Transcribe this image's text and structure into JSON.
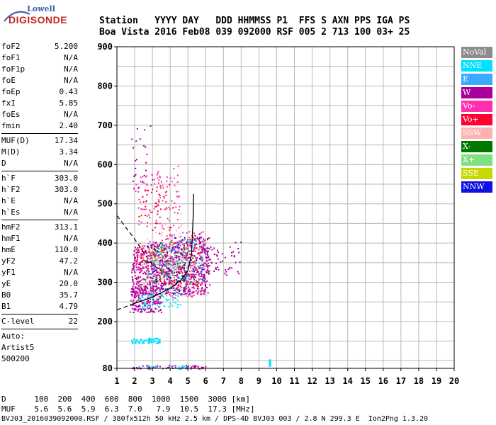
{
  "logo": {
    "line1": "Lowell",
    "line2": "DIGISONDE"
  },
  "header": {
    "row1": "Station   YYYY DAY   DDD HHMMSS P1  FFS S AXN PPS IGA PS",
    "row2": "Boa Vista 2016 Feb08 039 092000 RSF 005 2 713 100 03+ 25"
  },
  "params": {
    "group1": [
      {
        "k": "foF2",
        "v": "5.200"
      },
      {
        "k": "foF1",
        "v": "N/A"
      },
      {
        "k": "foF1p",
        "v": "N/A"
      },
      {
        "k": "foE",
        "v": "N/A"
      },
      {
        "k": "foEp",
        "v": "0.43"
      },
      {
        "k": "fxI",
        "v": "5.85"
      },
      {
        "k": "foEs",
        "v": "N/A"
      },
      {
        "k": "fmin",
        "v": "2.40"
      }
    ],
    "group2": [
      {
        "k": "MUF(D)",
        "v": "17.34"
      },
      {
        "k": "M(D)",
        "v": "3.34"
      },
      {
        "k": "D",
        "v": "N/A"
      }
    ],
    "group3": [
      {
        "k": "h`F",
        "v": "303.0"
      },
      {
        "k": "h`F2",
        "v": "303.0"
      },
      {
        "k": "h`E",
        "v": "N/A"
      },
      {
        "k": "h`Es",
        "v": "N/A"
      }
    ],
    "group4": [
      {
        "k": "hmF2",
        "v": "313.1"
      },
      {
        "k": "hmF1",
        "v": "N/A"
      },
      {
        "k": "hmE",
        "v": "110.0"
      },
      {
        "k": "yF2",
        "v": "47.2"
      },
      {
        "k": "yF1",
        "v": "N/A"
      },
      {
        "k": "yE",
        "v": "20.0"
      },
      {
        "k": "B0",
        "v": "35.7"
      },
      {
        "k": "B1",
        "v": "4.79"
      }
    ],
    "group5": [
      {
        "k": "C-level",
        "v": "22"
      }
    ],
    "auto": [
      "Auto:",
      "Artist5",
      "500200"
    ]
  },
  "legend": [
    {
      "label": "NoVal",
      "color": "#8c8c8c"
    },
    {
      "label": "NNE",
      "color": "#00e0ff"
    },
    {
      "label": "E",
      "color": "#3ca8ff"
    },
    {
      "label": "W",
      "color": "#a8009c"
    },
    {
      "label": "Vo-",
      "color": "#ff30b0"
    },
    {
      "label": "Vo+",
      "color": "#ff0030"
    },
    {
      "label": "SSW",
      "color": "#ffb0b0"
    },
    {
      "label": "X-",
      "color": "#007800"
    },
    {
      "label": "X+",
      "color": "#80e080"
    },
    {
      "label": "SSE",
      "color": "#c8d800"
    },
    {
      "label": "NNW",
      "color": "#1010e0"
    }
  ],
  "footer": {
    "line1": "D      100  200  400  600  800  1000  1500  3000 [km]",
    "line2": "MUF    5.6  5.6  5.9  6.3  7.0   7.9  10.5  17.3 [MHz]",
    "line3": "BVJ03_2016039092000.RSF / 380fx512h 50 kHz 2.5 km / DPS-4D BVJ03 003 / 2.8 N 299.3 E  Ion2Png 1.3.20"
  },
  "chart_data": {
    "type": "scatter",
    "xlim": [
      1,
      20
    ],
    "ylim": [
      80,
      900
    ],
    "xticks": [
      "1",
      "2",
      "3",
      "4",
      "5",
      "6",
      "7",
      "8",
      "9",
      "10",
      "11",
      "12",
      "13",
      "14",
      "15",
      "16",
      "17",
      "18",
      "19",
      "20"
    ],
    "yticks": [
      "80",
      "200",
      "300",
      "400",
      "500",
      "600",
      "700",
      "800",
      "900"
    ],
    "grid": true,
    "legend_position": "right",
    "echo_regions": [
      {
        "name": "W",
        "xmin": 1.8,
        "xmax": 6.2,
        "ymin": 270,
        "ymax": 420,
        "n": 700
      },
      {
        "name": "W",
        "xmin": 1.7,
        "xmax": 3.5,
        "ymin": 225,
        "ymax": 300,
        "n": 180
      },
      {
        "name": "Vo-",
        "xmin": 2.0,
        "xmax": 6.0,
        "ymin": 260,
        "ymax": 440,
        "n": 260
      },
      {
        "name": "Vo-",
        "xmin": 2.0,
        "xmax": 4.5,
        "ymin": 440,
        "ymax": 600,
        "n": 90
      },
      {
        "name": "Vo+",
        "xmin": 2.0,
        "xmax": 5.8,
        "ymin": 280,
        "ymax": 430,
        "n": 130
      },
      {
        "name": "Vo+",
        "xmin": 2.2,
        "xmax": 4.0,
        "ymin": 420,
        "ymax": 560,
        "n": 50
      },
      {
        "name": "E",
        "xmin": 3.0,
        "xmax": 5.8,
        "ymin": 310,
        "ymax": 420,
        "n": 90
      },
      {
        "name": "NNE",
        "xmin": 2.3,
        "xmax": 4.6,
        "ymin": 235,
        "ymax": 280,
        "n": 60
      },
      {
        "name": "NNW",
        "xmin": 2.5,
        "xmax": 5.8,
        "ymin": 280,
        "ymax": 430,
        "n": 90
      },
      {
        "name": "X+",
        "xmin": 2.4,
        "xmax": 6.0,
        "ymin": 260,
        "ymax": 420,
        "n": 90
      },
      {
        "name": "X-",
        "xmin": 3.0,
        "xmax": 5.0,
        "ymin": 300,
        "ymax": 420,
        "n": 40
      },
      {
        "name": "SSW",
        "xmin": 2.2,
        "xmax": 4.8,
        "ymin": 330,
        "ymax": 480,
        "n": 40
      },
      {
        "name": "SSE",
        "xmin": 2.5,
        "xmax": 5.5,
        "ymin": 300,
        "ymax": 410,
        "n": 40
      },
      {
        "name": "W",
        "xmin": 5.8,
        "xmax": 8.0,
        "ymin": 320,
        "ymax": 410,
        "n": 60
      },
      {
        "name": "W",
        "xmin": 1.8,
        "xmax": 3.0,
        "ymin": 540,
        "ymax": 720,
        "n": 25
      },
      {
        "name": "NNE",
        "xmin": 1.8,
        "xmax": 3.4,
        "ymin": 145,
        "ymax": 160,
        "n": 80
      },
      {
        "name": "W",
        "xmin": 1.8,
        "xmax": 6.0,
        "ymin": 80,
        "ymax": 90,
        "n": 60
      },
      {
        "name": "NNE",
        "xmin": 2.2,
        "xmax": 5.0,
        "ymin": 80,
        "ymax": 90,
        "n": 25
      }
    ],
    "marker_lines": [
      {
        "name": "NNE",
        "x": 9.6,
        "y1": 84,
        "y2": 103
      }
    ],
    "profile_solid": [
      [
        1.9,
        245
      ],
      [
        3,
        262
      ],
      [
        4,
        285
      ],
      [
        4.6,
        305
      ],
      [
        5.0,
        330
      ],
      [
        5.2,
        370
      ],
      [
        5.25,
        420
      ],
      [
        5.3,
        470
      ],
      [
        5.32,
        525
      ]
    ],
    "profile_dashed": [
      [
        1.0,
        470
      ],
      [
        1.5,
        440
      ],
      [
        2.0,
        410
      ],
      [
        2.6,
        370
      ],
      [
        3.0,
        345
      ],
      [
        3.5,
        330
      ]
    ],
    "profile_dashed_lower": [
      [
        1.0,
        230
      ],
      [
        1.5,
        238
      ],
      [
        1.9,
        245
      ]
    ]
  }
}
